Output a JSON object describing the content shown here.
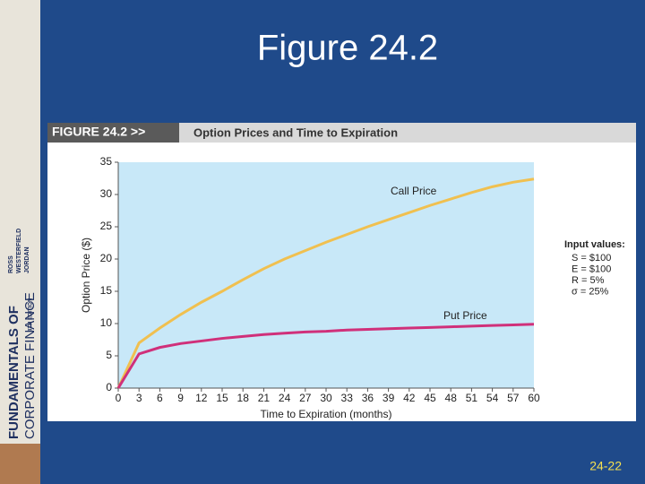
{
  "slide": {
    "title": "Figure 24.2",
    "page_number": "24-22",
    "book": {
      "line1": "FUNDAMENTALS OF",
      "line2": "CORPORATE FINANCE",
      "authors": [
        "ROSS",
        "WESTERFIELD",
        "JORDAN"
      ],
      "edition": "8TH EDITION"
    }
  },
  "chart_data": {
    "type": "line",
    "figure_label": "FIGURE 24.2 >>",
    "title": "Option Prices and Time to Expiration",
    "x_label": "Time to Expiration (months)",
    "y_label": "Option Price ($)",
    "x": [
      0,
      3,
      6,
      9,
      12,
      15,
      18,
      21,
      24,
      27,
      30,
      33,
      36,
      39,
      42,
      45,
      48,
      51,
      54,
      57,
      60
    ],
    "series": [
      {
        "name": "Call Price",
        "color": "#f0c050",
        "values": [
          0,
          7,
          9.3,
          11.4,
          13.3,
          15,
          16.8,
          18.5,
          20,
          21.3,
          22.6,
          23.8,
          25,
          26.1,
          27.2,
          28.3,
          29.3,
          30.3,
          31.2,
          31.9,
          32.4
        ]
      },
      {
        "name": "Put Price",
        "color": "#d0307a",
        "values": [
          0,
          5.3,
          6.3,
          6.9,
          7.3,
          7.7,
          8,
          8.3,
          8.5,
          8.7,
          8.8,
          9,
          9.1,
          9.2,
          9.3,
          9.4,
          9.5,
          9.6,
          9.7,
          9.8,
          9.9
        ]
      }
    ],
    "xlim": [
      0,
      60
    ],
    "xticks": [
      0,
      3,
      6,
      9,
      12,
      15,
      18,
      21,
      24,
      27,
      30,
      33,
      36,
      39,
      42,
      45,
      48,
      51,
      54,
      57,
      60
    ],
    "ylim": [
      0,
      35
    ],
    "yticks": [
      0,
      5,
      10,
      15,
      20,
      25,
      30,
      35
    ],
    "input_values": {
      "heading": "Input values:",
      "lines": [
        "S = $100",
        "E = $100",
        "R = 5%",
        "σ = 25%"
      ]
    }
  }
}
